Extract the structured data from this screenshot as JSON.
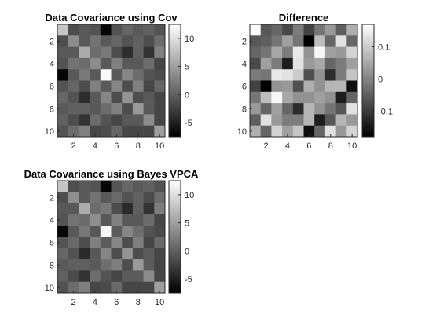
{
  "chart_data": [
    {
      "type": "heatmap",
      "title": "Data Covariance using Cov",
      "colormap": "gray",
      "x_tick_labels": [
        "2",
        "4",
        "6",
        "8",
        "10"
      ],
      "y_tick_labels": [
        "2",
        "4",
        "6",
        "8",
        "10"
      ],
      "colorbar_ticks": [
        "10",
        "5",
        "0",
        "-5"
      ],
      "colorbar_range": [
        -7.5,
        12.5
      ],
      "matrix": [
        [
          8.0,
          -1.5,
          -0.5,
          -1.0,
          -7.0,
          -1.0,
          0.5,
          -0.5,
          0.0,
          -1.0
        ],
        [
          -1.5,
          3.5,
          -0.5,
          1.5,
          -0.5,
          0.5,
          -1.0,
          0.0,
          -1.5,
          1.0
        ],
        [
          -0.5,
          -0.5,
          6.0,
          1.0,
          2.0,
          -1.5,
          -4.0,
          0.0,
          -3.5,
          2.5
        ],
        [
          -1.0,
          1.5,
          1.0,
          3.5,
          -0.5,
          2.5,
          -0.5,
          -0.5,
          1.0,
          -2.0
        ],
        [
          -7.0,
          -0.5,
          2.0,
          -0.5,
          12.0,
          -0.5,
          3.0,
          1.0,
          -1.0,
          -1.5
        ],
        [
          -1.0,
          0.5,
          -1.5,
          2.5,
          -0.5,
          3.0,
          -1.5,
          2.5,
          -2.0,
          0.5
        ],
        [
          0.5,
          -1.0,
          -4.0,
          -0.5,
          3.0,
          -1.5,
          4.0,
          -1.5,
          -0.5,
          -2.0
        ],
        [
          -0.5,
          0.0,
          0.0,
          -0.5,
          1.0,
          2.5,
          -1.5,
          4.5,
          -0.5,
          -2.0
        ],
        [
          0.0,
          -1.5,
          -3.5,
          1.0,
          -1.0,
          -2.0,
          -0.5,
          -0.5,
          3.5,
          -2.0
        ],
        [
          -1.0,
          1.0,
          2.5,
          -2.0,
          -1.5,
          0.5,
          -2.0,
          -2.0,
          -2.0,
          5.0
        ]
      ]
    },
    {
      "type": "heatmap",
      "title": "Difference",
      "colormap": "gray",
      "x_tick_labels": [
        "2",
        "4",
        "6",
        "8",
        "10"
      ],
      "y_tick_labels": [
        "2",
        "4",
        "6",
        "8",
        "10"
      ],
      "colorbar_ticks": [
        "0.1",
        "0",
        "-0.1"
      ],
      "colorbar_range": [
        -0.18,
        0.17
      ],
      "matrix": [
        [
          0.17,
          -0.06,
          -0.04,
          -0.08,
          -0.01,
          -0.09,
          -0.02,
          0.03,
          -0.05,
          0.06
        ],
        [
          -0.06,
          -0.05,
          -0.02,
          0.04,
          -0.02,
          -0.18,
          0.08,
          -0.04,
          0.13,
          -0.04
        ],
        [
          -0.04,
          -0.02,
          0.05,
          -0.01,
          0.14,
          0.02,
          0.16,
          0.04,
          0.03,
          0.11
        ],
        [
          -0.08,
          0.04,
          -0.01,
          -0.14,
          0.13,
          0.03,
          0.05,
          -0.04,
          -0.01,
          0.04
        ],
        [
          -0.01,
          -0.02,
          0.14,
          0.13,
          0.1,
          -0.07,
          0.02,
          -0.12,
          -0.01,
          0.09
        ],
        [
          -0.09,
          -0.18,
          0.02,
          0.03,
          -0.07,
          0.06,
          0.02,
          0.07,
          0.07,
          -0.16
        ],
        [
          -0.02,
          0.08,
          0.16,
          0.05,
          0.02,
          0.02,
          0.04,
          0.02,
          -0.14,
          -0.04
        ],
        [
          0.03,
          -0.04,
          0.04,
          -0.04,
          -0.12,
          0.07,
          0.02,
          -0.02,
          -0.06,
          0.13
        ],
        [
          -0.05,
          0.13,
          0.03,
          -0.01,
          -0.01,
          0.07,
          -0.14,
          -0.06,
          0.07,
          0.03
        ],
        [
          0.06,
          -0.04,
          0.11,
          0.04,
          0.09,
          -0.16,
          -0.04,
          0.13,
          0.03,
          0.11
        ]
      ]
    },
    {
      "type": "heatmap",
      "title": "Data Covariance using Bayes VPCA",
      "colormap": "gray",
      "x_tick_labels": [
        "2",
        "4",
        "6",
        "8",
        "10"
      ],
      "y_tick_labels": [
        "2",
        "4",
        "6",
        "8",
        "10"
      ],
      "colorbar_ticks": [
        "10",
        "5",
        "0",
        "-5"
      ],
      "colorbar_range": [
        -7.5,
        12.5
      ],
      "matrix": [
        [
          7.9,
          -1.4,
          -0.5,
          -0.9,
          -7.0,
          -0.9,
          0.5,
          -0.5,
          0.0,
          -1.1
        ],
        [
          -1.4,
          3.6,
          -0.5,
          1.5,
          -0.5,
          0.7,
          -1.1,
          0.0,
          -1.6,
          1.0
        ],
        [
          -0.5,
          -0.5,
          6.0,
          1.0,
          1.9,
          -1.5,
          -4.2,
          0.0,
          -3.5,
          2.4
        ],
        [
          -0.9,
          1.5,
          1.0,
          3.6,
          -0.6,
          2.5,
          -0.6,
          -0.5,
          1.0,
          -2.0
        ],
        [
          -7.0,
          -0.5,
          1.9,
          -0.6,
          11.9,
          -0.4,
          3.0,
          1.1,
          -1.0,
          -1.6
        ],
        [
          -0.9,
          0.7,
          -1.5,
          2.5,
          -0.4,
          3.0,
          -1.5,
          2.4,
          -2.1,
          0.7
        ],
        [
          0.5,
          -1.1,
          -4.2,
          -0.6,
          3.0,
          -1.5,
          4.0,
          -1.5,
          -0.4,
          -2.0
        ],
        [
          -0.5,
          0.0,
          0.0,
          -0.5,
          1.1,
          2.4,
          -1.5,
          4.5,
          -0.4,
          -2.1
        ],
        [
          0.0,
          -1.6,
          -3.5,
          1.0,
          -1.0,
          -2.1,
          -0.4,
          -0.4,
          3.4,
          -2.0
        ],
        [
          -1.1,
          1.0,
          2.4,
          -2.0,
          -1.6,
          0.7,
          -2.0,
          -2.1,
          -2.0,
          4.9
        ]
      ]
    }
  ]
}
